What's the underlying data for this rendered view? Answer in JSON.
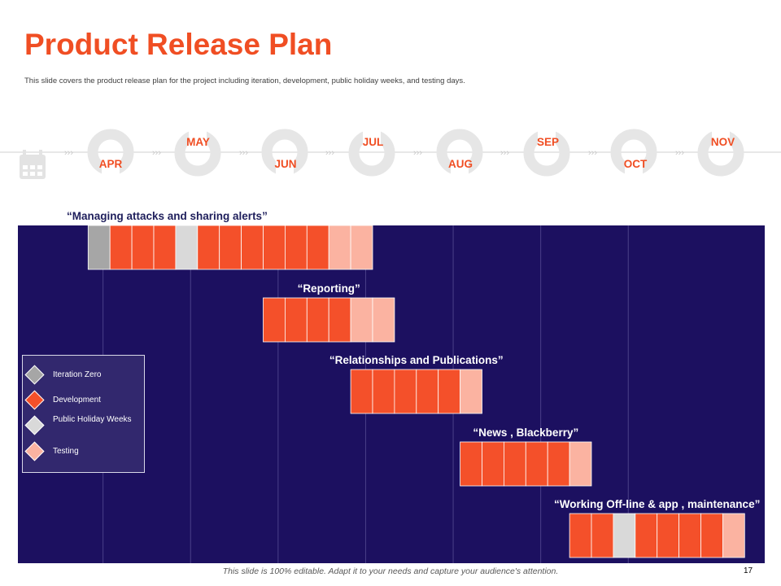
{
  "slide": {
    "title": "Product Release Plan",
    "subtitle": "This slide covers the product release plan for the project including iteration, development, public holiday weeks, and testing days.",
    "footer": "This slide is 100% editable. Adapt it to your needs and capture your audience's attention.",
    "page_number": "17"
  },
  "colors": {
    "accent": "#f04e23",
    "chart_bg": "#1c1060",
    "iteration_zero": "#a6a6a6",
    "development": "#f4502a",
    "public_holiday": "#d9d9d9",
    "testing": "#fbb3a1",
    "timeline_ring": "#e6e6e6",
    "task_label": "#1f1f5c"
  },
  "chart_data": {
    "type": "gantt",
    "title": "Product Release Plan",
    "months": [
      "APR",
      "MAY",
      "JUN",
      "JUL",
      "AUG",
      "SEP",
      "OCT",
      "NOV"
    ],
    "weeks_per_month": 4,
    "legend": [
      {
        "key": "I",
        "label": "Iteration Zero",
        "color": "#a6a6a6"
      },
      {
        "key": "D",
        "label": "Development",
        "color": "#f4502a"
      },
      {
        "key": "H",
        "label": "Public Holiday Weeks",
        "color": "#d9d9d9"
      },
      {
        "key": "T",
        "label": "Testing",
        "color": "#fbb3a1"
      }
    ],
    "tasks": [
      {
        "name": "“Managing attacks and sharing alerts”",
        "start_week": 2,
        "cells": [
          "I",
          "D",
          "D",
          "D",
          "H",
          "D",
          "D",
          "D",
          "D",
          "D",
          "D",
          "T",
          "T"
        ]
      },
      {
        "name": "“Reporting”",
        "start_week": 10,
        "cells": [
          "D",
          "D",
          "D",
          "D",
          "T",
          "T"
        ]
      },
      {
        "name": "“Relationships and Publications”",
        "start_week": 14,
        "cells": [
          "D",
          "D",
          "D",
          "D",
          "D",
          "T"
        ]
      },
      {
        "name": "“News , Blackberry”",
        "start_week": 19,
        "cells": [
          "D",
          "D",
          "D",
          "D",
          "D",
          "T"
        ]
      },
      {
        "name": "“Working Off-line & app , maintenance”",
        "start_week": 24,
        "cells": [
          "D",
          "D",
          "H",
          "D",
          "D",
          "D",
          "D",
          "T"
        ]
      }
    ]
  }
}
